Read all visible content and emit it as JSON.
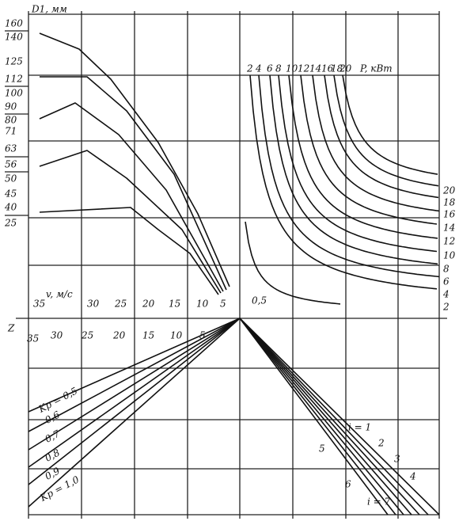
{
  "d_axis": {
    "label": "D1, мм",
    "ticks": [
      "160",
      "140",
      "125",
      "112",
      "100",
      "90",
      "80",
      "71",
      "63",
      "56",
      "50",
      "45",
      "40",
      "25"
    ]
  },
  "power_axis": {
    "ticks": [
      "2",
      "4",
      "6",
      "8",
      "10",
      "12",
      "14",
      "16",
      "18",
      "20"
    ],
    "label": "P, кВт",
    "right_ticks": [
      "20",
      "18",
      "16",
      "14",
      "12",
      "10",
      "8",
      "6",
      "4",
      "2"
    ],
    "low_curve": "0,5"
  },
  "v_axis": {
    "label": "v, м/с",
    "ticks": [
      "35",
      "30",
      "25",
      "20",
      "15",
      "10",
      "5"
    ]
  },
  "z_axis": {
    "label": "Z",
    "ticks": [
      "35",
      "30",
      "25",
      "20",
      "15",
      "10",
      "5"
    ]
  },
  "kp_labels": [
    "Kp = 0,5",
    "0,6",
    "0,7",
    "0,8",
    "0,9",
    "Kp = 1,0"
  ],
  "i_labels": [
    "i = 1",
    "2",
    "3",
    "4",
    "5",
    "6",
    "i = 7"
  ]
}
